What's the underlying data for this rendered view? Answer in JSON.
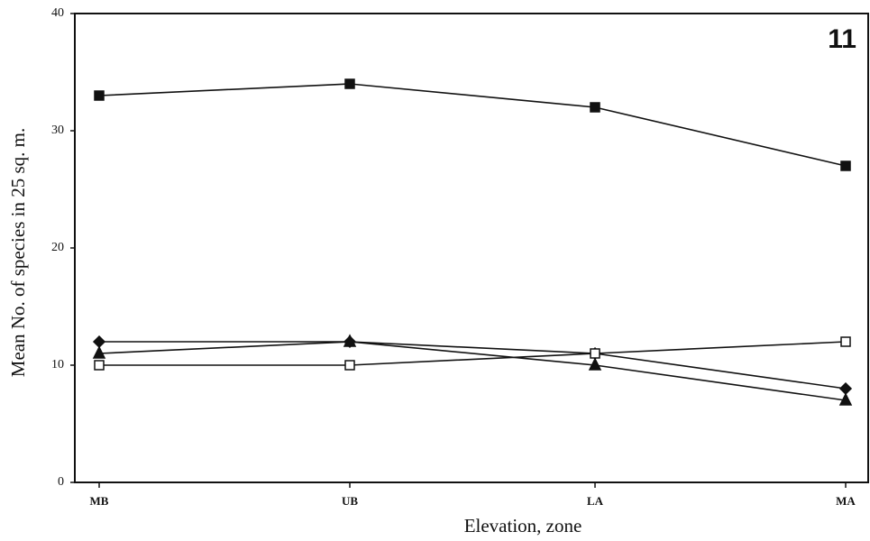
{
  "chart_data": {
    "type": "line",
    "xlabel": "Elevation, zone",
    "ylabel": "Mean No. of species in 25 sq. m.",
    "annotation": "11",
    "categories": [
      "MB",
      "UB",
      "LA",
      "MA"
    ],
    "series": [
      {
        "color": "#111111",
        "marker": "square",
        "filled": true,
        "values": [
          33,
          34,
          32,
          27
        ]
      },
      {
        "color": "#111111",
        "marker": "diamond",
        "filled": true,
        "values": [
          12,
          12,
          11,
          8
        ]
      },
      {
        "color": "#111111",
        "marker": "triangle",
        "filled": true,
        "values": [
          11,
          12,
          10,
          7
        ]
      },
      {
        "color": "#111111",
        "marker": "square",
        "filled": false,
        "values": [
          10,
          10,
          11,
          12
        ]
      }
    ],
    "ylim": [
      0,
      40
    ],
    "yticks": [
      0,
      10,
      20,
      30,
      40
    ],
    "grid": false
  }
}
